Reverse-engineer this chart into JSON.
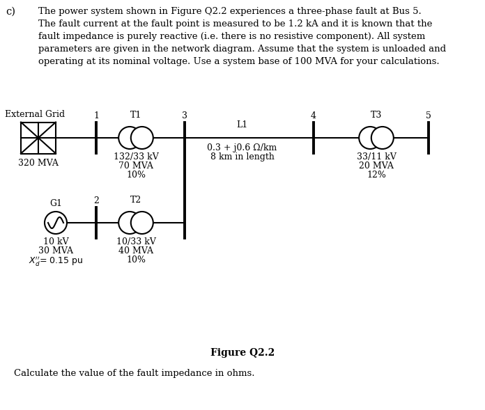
{
  "background_color": "#ffffff",
  "text_color": "#000000",
  "fig_width": 6.96,
  "fig_height": 5.89,
  "paragraph": [
    "The power system shown in Figure Q2.2 experiences a three-phase fault at Bus 5.",
    "The fault current at the fault point is measured to be 1.2 kA and it is known that the",
    "fault impedance is purely reactive (i.e. there is no resistive component). All system",
    "parameters are given in the network diagram. Assume that the system is unloaded and",
    "operating at its nominal voltage. Use a system base of 100 MVA for your calculations."
  ],
  "diagram_title": "Figure Q2.2",
  "footer_text": "Calculate the value of the fault impedance in ohms.",
  "eg_label": "External Grid",
  "eg_mva": "320 MVA",
  "g1_label": "G1",
  "g1_line1": "10 kV",
  "g1_line2": "30 MVA",
  "g1_line3": "= 0.15 pu",
  "t1_label": "T1",
  "t1_line1": "132/33 kV",
  "t1_line2": "70 MVA",
  "t1_line3": "10%",
  "t2_label": "T2",
  "t2_line1": "10/33 kV",
  "t2_line2": "40 MVA",
  "t2_line3": "10%",
  "t3_label": "T3",
  "t3_line1": "33/11 kV",
  "t3_line2": "20 MVA",
  "t3_line3": "12%",
  "l1_label": "L1",
  "l1_line1": "0.3 + j0.6 Ω/km",
  "l1_line2": "8 km in length",
  "bus_labels": [
    "1",
    "2",
    "3",
    "4",
    "5"
  ]
}
